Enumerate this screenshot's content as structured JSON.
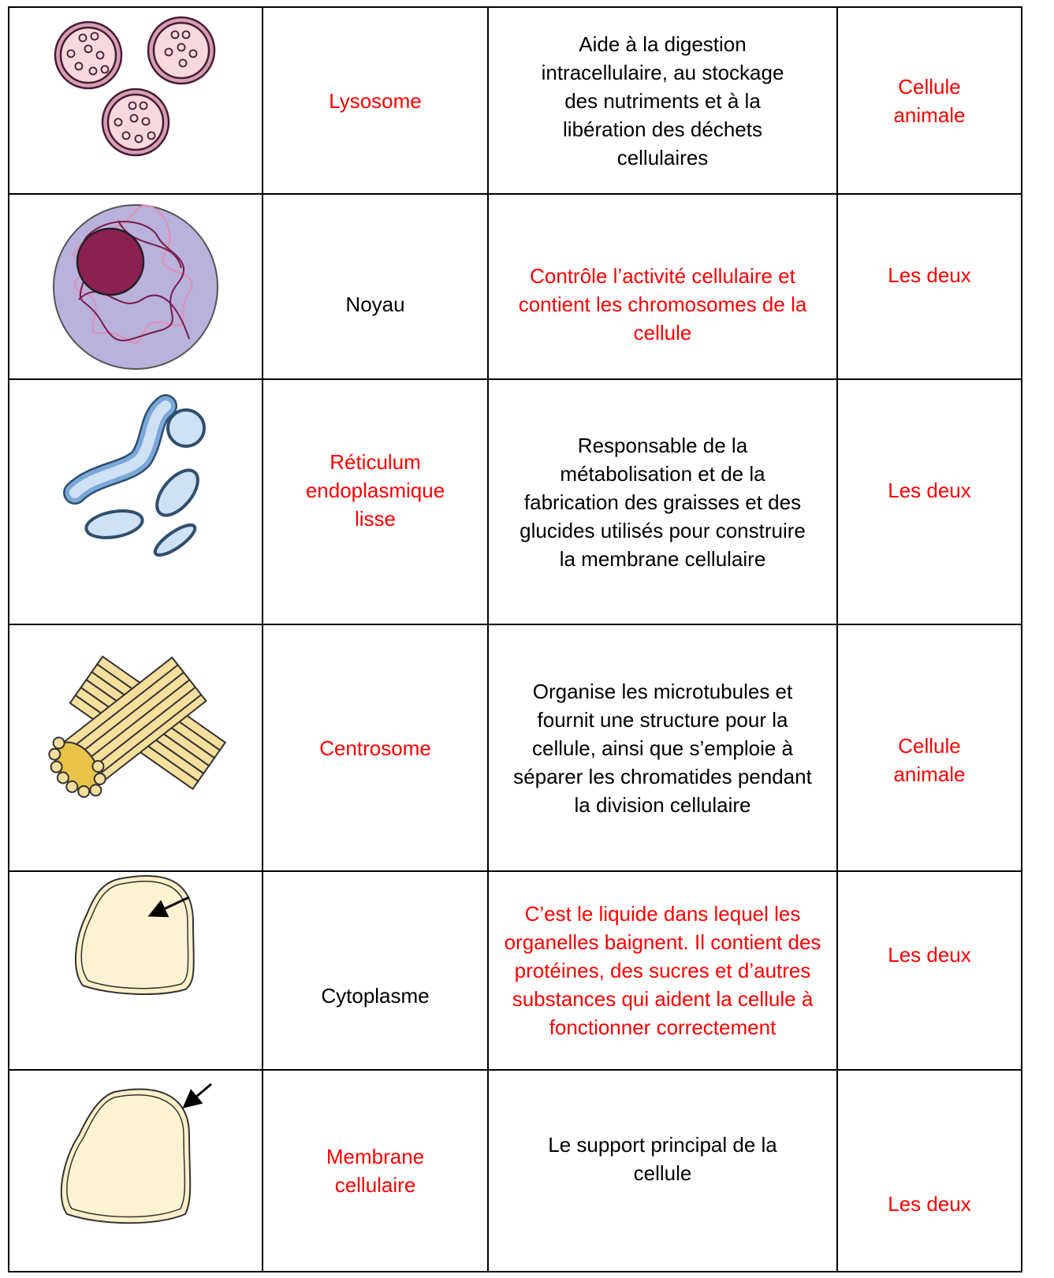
{
  "table": {
    "rows": [
      {
        "name": "Lysosome",
        "function": "Aide à la digestion intracellulaire, au stockage des nutriments et à la libération des déchets cellulaires",
        "cell_type": "Cellule animale"
      },
      {
        "name": "Noyau",
        "function": "Contrôle l’activité cellulaire et contient les chromosomes de la cellule",
        "cell_type": "Les deux"
      },
      {
        "name": "Réticulum endoplasmique lisse",
        "function": "Responsable de la métabolisation et de la fabrication des graisses et des glucides utilisés pour construire la membrane cellulaire",
        "cell_type": "Les deux"
      },
      {
        "name": "Centrosome",
        "function": "Organise les microtubules et fournit une structure pour la cellule, ainsi que s’emploie à séparer les chromatides pendant la division cellulaire",
        "cell_type": "Cellule animale"
      },
      {
        "name": "Cytoplasme",
        "function": "C’est le liquide dans lequel les organelles baignent. Il contient des protéines, des sucres et d’autres substances qui aident la cellule à fonctionner correctement",
        "cell_type": "Les deux"
      },
      {
        "name": "Membrane cellulaire",
        "function": "Le support principal de la cellule",
        "cell_type": "Les deux"
      }
    ]
  }
}
